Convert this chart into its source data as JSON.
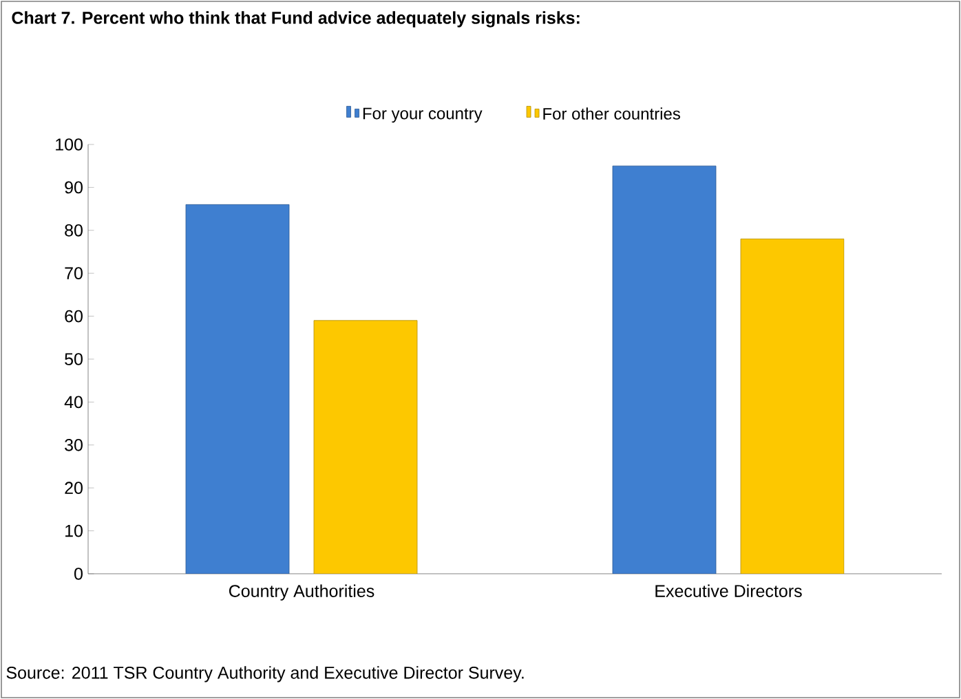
{
  "chart_data": {
    "type": "bar",
    "title": "Chart 7. Percent who think that Fund advice adequately signals risks:",
    "categories": [
      "Country Authorities",
      "Executive Directors"
    ],
    "series": [
      {
        "name": "For your country",
        "color": "#3f7fd0",
        "values": [
          86,
          95
        ]
      },
      {
        "name": "For other countries",
        "color": "#fdc800",
        "values": [
          59,
          78
        ]
      }
    ],
    "ylim": [
      0,
      100
    ],
    "yticks": [
      0,
      10,
      20,
      30,
      40,
      50,
      60,
      70,
      80,
      90,
      100
    ],
    "grid": false,
    "legend": "top",
    "annotations": [
      "Source: 2011 TSR Country Authority and Executive Director Survey."
    ]
  }
}
